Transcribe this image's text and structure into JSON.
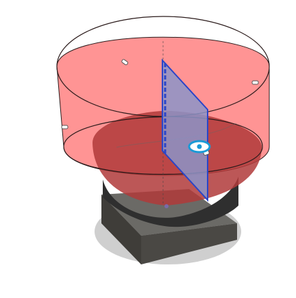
{
  "viewport": {
    "background": "#ffffff"
  },
  "scene": {
    "colors": {
      "shadow": "#cfcfcf",
      "base_dark": "#3f3d39",
      "base_top": "#6b6a66",
      "bowl_dark": "#2f2f2f",
      "cylinder_fill": "#ff6b6b",
      "cylinder_edge": "#2a1a1a",
      "dome": "#b03a3a",
      "plane_fill": "#8c94c8",
      "plane_edge": "#2b45c8",
      "gizmo": "#1a9ad6"
    },
    "icons": {
      "section_plane": "section-plane-icon",
      "move_gizmo": "move-gizmo-icon",
      "grip": "grip-handle-icon"
    }
  }
}
